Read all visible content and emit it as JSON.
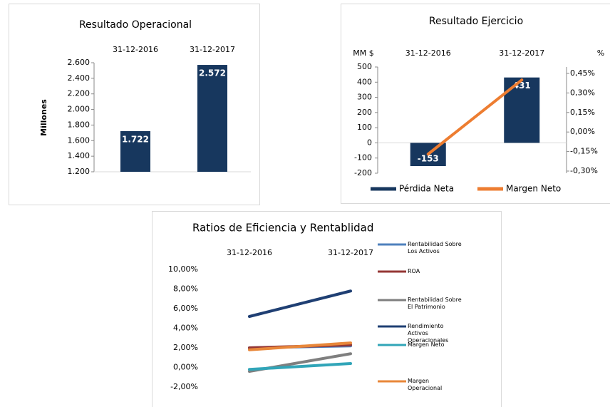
{
  "chart_data": [
    {
      "type": "bar",
      "title": "Resultado Operacional",
      "ylabel": "Millones",
      "categories": [
        "31-12-2016",
        "31-12-2017"
      ],
      "values": [
        1722,
        2572
      ],
      "value_labels": [
        "1.722",
        "2.572"
      ],
      "color": "#17375e",
      "ylim": [
        1200,
        2600
      ],
      "yticks": [
        {
          "value": 1200,
          "label": "1.200"
        },
        {
          "value": 1400,
          "label": "1.400"
        },
        {
          "value": 1600,
          "label": "1.600"
        },
        {
          "value": 1800,
          "label": "1.800"
        },
        {
          "value": 2000,
          "label": "2.000"
        },
        {
          "value": 2200,
          "label": "2.200"
        },
        {
          "value": 2400,
          "label": "2.400"
        },
        {
          "value": 2600,
          "label": "2.600"
        }
      ]
    },
    {
      "type": "bar",
      "title": "Resultado Ejercicio",
      "ylabel": "MM $",
      "y2label": "%",
      "categories": [
        "31-12-2016",
        "31-12-2017"
      ],
      "series": [
        {
          "name": "Pérdida Neta",
          "color": "#17375e",
          "values": [
            -153,
            431
          ]
        },
        {
          "name": "Margen Neto",
          "color": "#ed7d31",
          "type": "line",
          "axis": "y2",
          "values": [
            -0.17,
            0.4
          ]
        }
      ],
      "ylim": [
        -200,
        500
      ],
      "yticks": [
        -200,
        -100,
        0,
        100,
        200,
        300,
        400,
        500
      ],
      "y2lim": [
        -0.3,
        0.45
      ],
      "y2ticks": [
        {
          "value": -0.3,
          "label": "-0,30%"
        },
        {
          "value": -0.15,
          "label": "-0,15%"
        },
        {
          "value": 0,
          "label": "0,00%"
        },
        {
          "value": 0.15,
          "label": "0,15%"
        },
        {
          "value": 0.3,
          "label": "0,30%"
        },
        {
          "value": 0.45,
          "label": "0,45%"
        }
      ],
      "legend": "bottom"
    },
    {
      "type": "line",
      "title": "Ratios de Eficiencia y Rentablidad",
      "categories": [
        "31-12-2016",
        "31-12-2017"
      ],
      "series": [
        {
          "name": "Rentabilidad Sobre Los Activos",
          "color": "#4f81bd",
          "values": [
            2.0,
            2.2
          ]
        },
        {
          "name": "ROA",
          "color": "#953735",
          "values": [
            2.0,
            2.3
          ]
        },
        {
          "name": "Rentabilidad Sobre El Patrimonio",
          "color": "#7f7f7f",
          "values": [
            -0.4,
            1.4
          ]
        },
        {
          "name": "Rendimiento Activos Operacionales",
          "color": "#1f3f73",
          "values": [
            5.2,
            7.8
          ]
        },
        {
          "name": "Margen Neto",
          "color": "#31a5b8",
          "values": [
            -0.2,
            0.4
          ]
        },
        {
          "name": "Margen Operacional",
          "color": "#e8873a",
          "values": [
            1.8,
            2.5
          ]
        }
      ],
      "ylim": [
        -2,
        10
      ],
      "yticks": [
        {
          "value": -2,
          "label": "-2,00%"
        },
        {
          "value": 0,
          "label": "0,00%"
        },
        {
          "value": 2,
          "label": "2,00%"
        },
        {
          "value": 4,
          "label": "4,00%"
        },
        {
          "value": 6,
          "label": "6,00%"
        },
        {
          "value": 8,
          "label": "8,00%"
        },
        {
          "value": 10,
          "label": "10,00%"
        }
      ],
      "legend": "right"
    }
  ]
}
